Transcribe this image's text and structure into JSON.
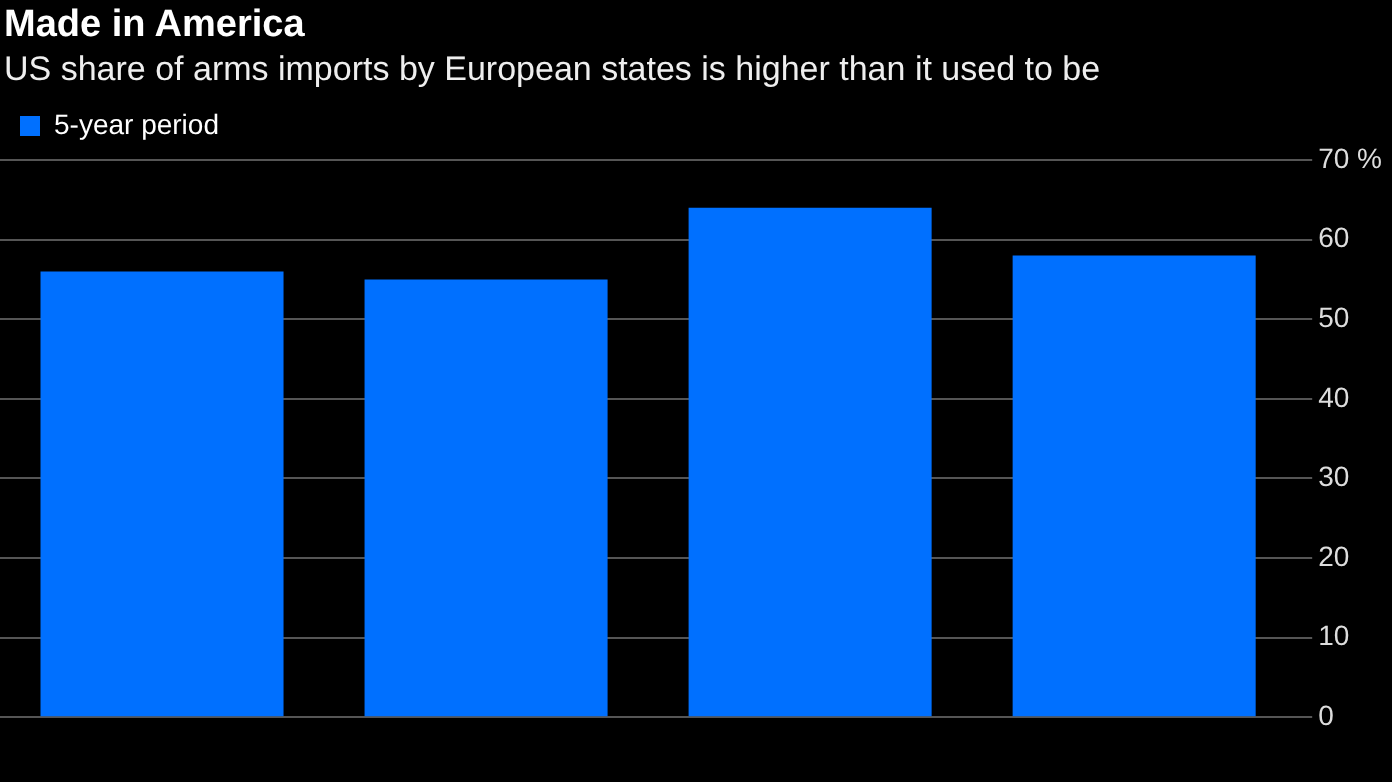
{
  "chart_data": {
    "type": "bar",
    "title": "Made in America",
    "subtitle": "US share of arms imports by European states is higher than it used to be",
    "categories": [
      null,
      null,
      null,
      null
    ],
    "series": [
      {
        "name": "5-year period",
        "color": "#0070ff",
        "values": [
          56,
          55,
          64,
          58
        ]
      }
    ],
    "ylim": [
      0,
      70
    ],
    "yticks": [
      0,
      10,
      20,
      30,
      40,
      50,
      60,
      {
        "value": 70,
        "label": "70 %"
      }
    ],
    "grid": "y",
    "legend": "top left"
  }
}
